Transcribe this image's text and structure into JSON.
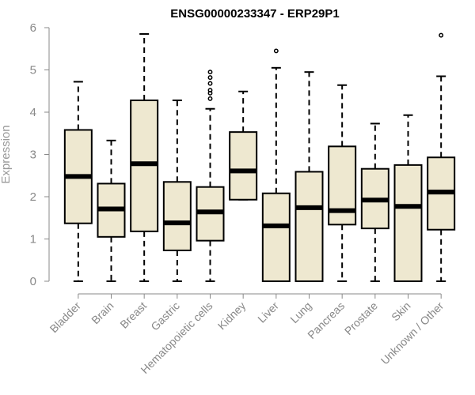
{
  "chart_data": {
    "type": "boxplot",
    "title": "ENSG00000233347 - ERP29P1",
    "ylabel": "Expression",
    "xlabel": "",
    "ylim": [
      0,
      6
    ],
    "yticks": [
      0,
      1,
      2,
      3,
      4,
      5,
      6
    ],
    "grid": false,
    "colors": {
      "box_fill": "#eee8d0",
      "stroke": "#000000",
      "axis": "#888888"
    },
    "categories": [
      "Bladder",
      "Brain",
      "Breast",
      "Gastric",
      "Hematopoietic cells",
      "Kidney",
      "Liver",
      "Lung",
      "Pancreas",
      "Prostate",
      "Skin",
      "Unknown / Other"
    ],
    "boxes": [
      {
        "min": 0.0,
        "q1": 1.37,
        "median": 2.48,
        "q3": 3.58,
        "max": 4.72,
        "outliers": []
      },
      {
        "min": 0.0,
        "q1": 1.05,
        "median": 1.71,
        "q3": 2.31,
        "max": 3.33,
        "outliers": []
      },
      {
        "min": 0.0,
        "q1": 1.18,
        "median": 2.78,
        "q3": 4.28,
        "max": 5.85,
        "outliers": []
      },
      {
        "min": 0.0,
        "q1": 0.73,
        "median": 1.38,
        "q3": 2.35,
        "max": 4.28,
        "outliers": []
      },
      {
        "min": 0.0,
        "q1": 0.96,
        "median": 1.64,
        "q3": 2.23,
        "max": 4.08,
        "outliers": [
          4.32,
          4.45,
          4.52,
          4.68,
          4.82,
          4.95
        ]
      },
      {
        "min": 1.93,
        "q1": 1.93,
        "median": 2.61,
        "q3": 3.53,
        "max": 4.49,
        "outliers": []
      },
      {
        "min": 0.0,
        "q1": 0.0,
        "median": 1.31,
        "q3": 2.08,
        "max": 5.05,
        "outliers": [
          5.45
        ]
      },
      {
        "min": 0.0,
        "q1": 0.0,
        "median": 1.74,
        "q3": 2.59,
        "max": 4.95,
        "outliers": []
      },
      {
        "min": 0.0,
        "q1": 1.34,
        "median": 1.67,
        "q3": 3.19,
        "max": 4.64,
        "outliers": []
      },
      {
        "min": 0.0,
        "q1": 1.25,
        "median": 1.92,
        "q3": 2.66,
        "max": 3.73,
        "outliers": []
      },
      {
        "min": 0.0,
        "q1": 0.0,
        "median": 1.77,
        "q3": 2.75,
        "max": 3.93,
        "outliers": []
      },
      {
        "min": 0.0,
        "q1": 1.22,
        "median": 2.11,
        "q3": 2.93,
        "max": 4.85,
        "outliers": [
          5.82
        ]
      }
    ]
  }
}
